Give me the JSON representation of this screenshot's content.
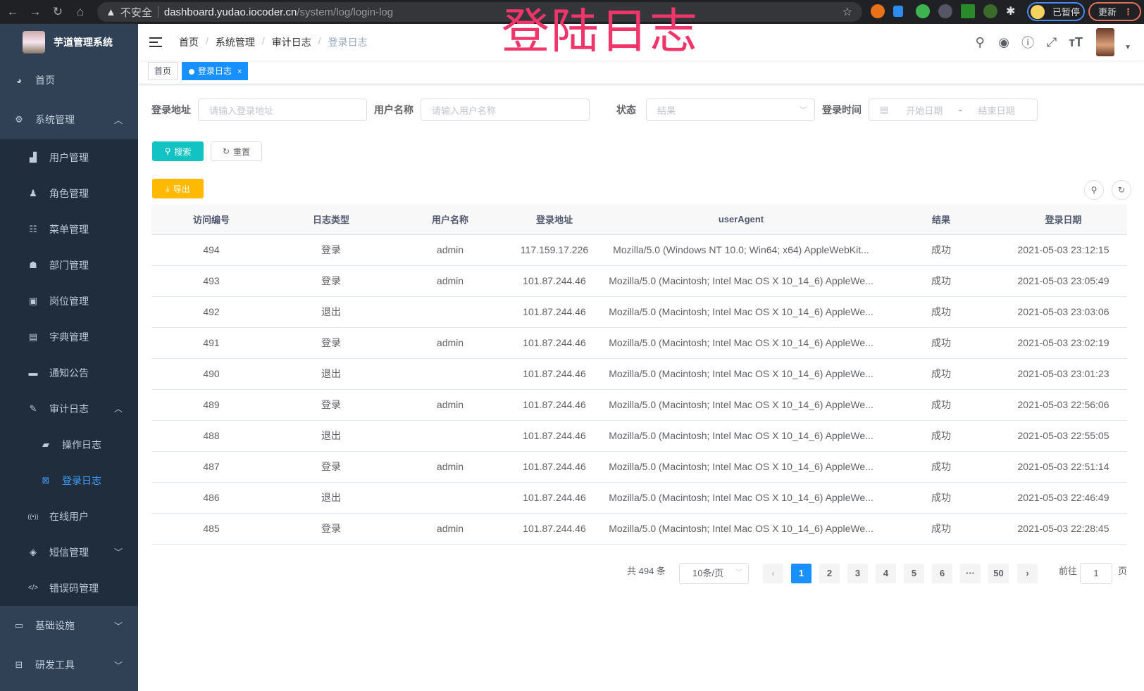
{
  "browser": {
    "security": "不安全",
    "host": "dashboard.yudao.iocoder.cn",
    "path": "/system/log/login-log",
    "paused": "已暂停",
    "update": "更新"
  },
  "overlay_title": "登陆日志",
  "app_title": "芋道管理系统",
  "sidebar": {
    "items": [
      {
        "label": "首页",
        "icon": "dashboard-icon"
      },
      {
        "label": "系统管理",
        "icon": "gear-icon",
        "expanded": true
      },
      {
        "label": "用户管理",
        "icon": "user-icon"
      },
      {
        "label": "角色管理",
        "icon": "peoples-icon"
      },
      {
        "label": "菜单管理",
        "icon": "tree-table-icon"
      },
      {
        "label": "部门管理",
        "icon": "tree-icon"
      },
      {
        "label": "岗位管理",
        "icon": "post-icon"
      },
      {
        "label": "字典管理",
        "icon": "dict-icon"
      },
      {
        "label": "通知公告",
        "icon": "message-icon"
      },
      {
        "label": "审计日志",
        "icon": "log-icon",
        "expanded": true
      },
      {
        "label": "操作日志",
        "icon": "form-icon"
      },
      {
        "label": "登录日志",
        "icon": "logininfor-icon",
        "active": true
      },
      {
        "label": "在线用户",
        "icon": "online-icon"
      },
      {
        "label": "短信管理",
        "icon": "shield-icon"
      },
      {
        "label": "错误码管理",
        "icon": "code-icon"
      },
      {
        "label": "基础设施",
        "icon": "monitor-icon"
      },
      {
        "label": "研发工具",
        "icon": "tool-icon"
      }
    ]
  },
  "breadcrumb": [
    "首页",
    "系统管理",
    "审计日志",
    "登录日志"
  ],
  "tags": [
    {
      "label": "首页"
    },
    {
      "label": "登录日志",
      "close": "×"
    }
  ],
  "search": {
    "ip_label": "登录地址",
    "ip_placeholder": "请输入登录地址",
    "user_label": "用户名称",
    "user_placeholder": "请输入用户名称",
    "status_label": "状态",
    "status_placeholder": "结果",
    "time_label": "登录时间",
    "start_placeholder": "开始日期",
    "range_sep": "-",
    "end_placeholder": "结束日期",
    "search_btn": "搜索",
    "reset_btn": "重置",
    "export_btn": "导出"
  },
  "colors": {
    "accent": "#1890ff",
    "search": "#13c2c2",
    "export": "#ffba00",
    "sidebar": "#304156",
    "overlay": "#f0356b"
  },
  "table": {
    "columns": [
      "访问编号",
      "日志类型",
      "用户名称",
      "登录地址",
      "userAgent",
      "结果",
      "登录日期"
    ],
    "rows": [
      [
        "494",
        "登录",
        "admin",
        "117.159.17.226",
        "Mozilla/5.0 (Windows NT 10.0; Win64; x64) AppleWebKit...",
        "成功",
        "2021-05-03 23:12:15"
      ],
      [
        "493",
        "登录",
        "admin",
        "101.87.244.46",
        "Mozilla/5.0 (Macintosh; Intel Mac OS X 10_14_6) AppleWe...",
        "成功",
        "2021-05-03 23:05:49"
      ],
      [
        "492",
        "退出",
        "",
        "101.87.244.46",
        "Mozilla/5.0 (Macintosh; Intel Mac OS X 10_14_6) AppleWe...",
        "成功",
        "2021-05-03 23:03:06"
      ],
      [
        "491",
        "登录",
        "admin",
        "101.87.244.46",
        "Mozilla/5.0 (Macintosh; Intel Mac OS X 10_14_6) AppleWe...",
        "成功",
        "2021-05-03 23:02:19"
      ],
      [
        "490",
        "退出",
        "",
        "101.87.244.46",
        "Mozilla/5.0 (Macintosh; Intel Mac OS X 10_14_6) AppleWe...",
        "成功",
        "2021-05-03 23:01:23"
      ],
      [
        "489",
        "登录",
        "admin",
        "101.87.244.46",
        "Mozilla/5.0 (Macintosh; Intel Mac OS X 10_14_6) AppleWe...",
        "成功",
        "2021-05-03 22:56:06"
      ],
      [
        "488",
        "退出",
        "",
        "101.87.244.46",
        "Mozilla/5.0 (Macintosh; Intel Mac OS X 10_14_6) AppleWe...",
        "成功",
        "2021-05-03 22:55:05"
      ],
      [
        "487",
        "登录",
        "admin",
        "101.87.244.46",
        "Mozilla/5.0 (Macintosh; Intel Mac OS X 10_14_6) AppleWe...",
        "成功",
        "2021-05-03 22:51:14"
      ],
      [
        "486",
        "退出",
        "",
        "101.87.244.46",
        "Mozilla/5.0 (Macintosh; Intel Mac OS X 10_14_6) AppleWe...",
        "成功",
        "2021-05-03 22:46:49"
      ],
      [
        "485",
        "登录",
        "admin",
        "101.87.244.46",
        "Mozilla/5.0 (Macintosh; Intel Mac OS X 10_14_6) AppleWe...",
        "成功",
        "2021-05-03 22:28:45"
      ]
    ]
  },
  "pagination": {
    "total": "共 494 条",
    "page_size": "10条/页",
    "pages": [
      "1",
      "2",
      "3",
      "4",
      "5",
      "6",
      "···",
      "50"
    ],
    "current": "1",
    "goto_label": "前往",
    "goto_value": "1",
    "goto_suffix": "页",
    "prev": "‹",
    "next": "›"
  }
}
